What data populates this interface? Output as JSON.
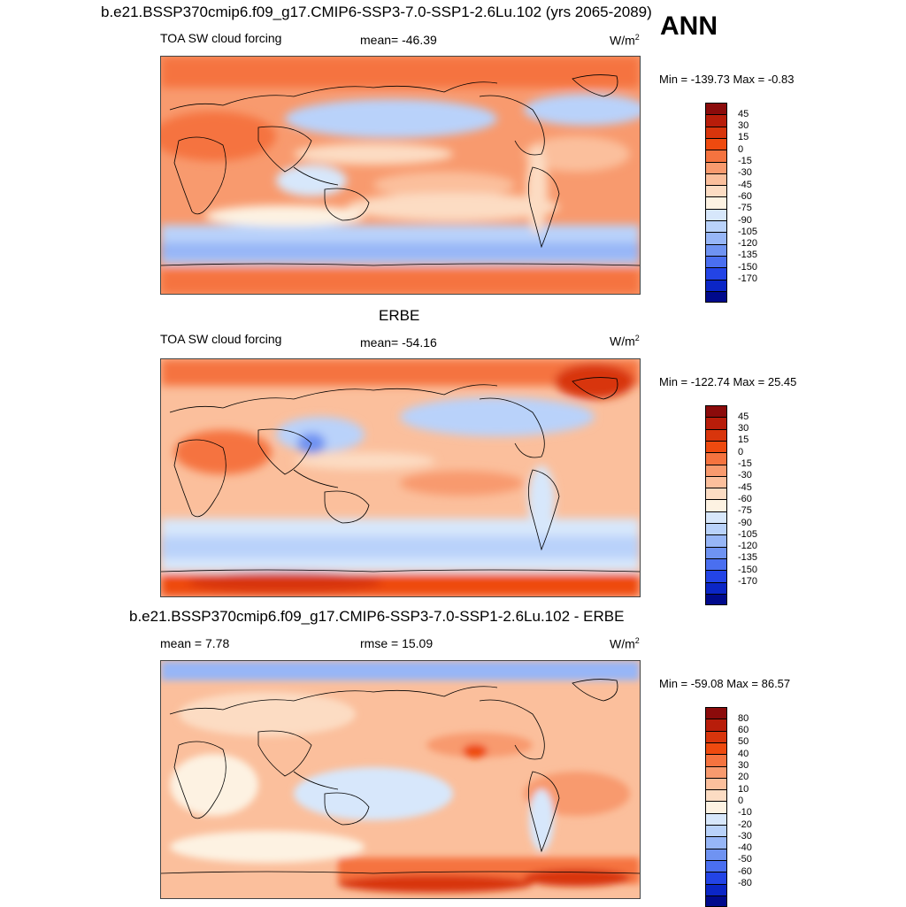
{
  "header": {
    "title": "b.e21.BSSP370cmip6.f09_g17.CMIP6-SSP3-7.0-SSP1-2.6Lu.102 (yrs 2065-2089)",
    "season": "ANN"
  },
  "panels": [
    {
      "id": "model",
      "subtitle": "",
      "left_label": "TOA SW cloud forcing",
      "center_label": "mean= -46.39",
      "unit": "W/m",
      "unit_exp": "2",
      "minmax": "Min = -139.73 Max =  -0.83",
      "colorbar_labels": [
        "45",
        "30",
        "15",
        "0",
        "-15",
        "-30",
        "-45",
        "-60",
        "-75",
        "-90",
        "-105",
        "-120",
        "-135",
        "-150",
        "-170"
      ],
      "colorbar_colors": [
        "#8b0b0b",
        "#b81d0a",
        "#d8350c",
        "#ee4a0f",
        "#f5733f",
        "#f89a6e",
        "#fbbf9c",
        "#fcdcc3",
        "#fdf2e2",
        "#d7e7fb",
        "#b9d2fa",
        "#97b6f7",
        "#6f93f2",
        "#4a6ff0",
        "#2344e6",
        "#0b26c6",
        "#000a8c"
      ]
    },
    {
      "id": "obs",
      "subtitle": "ERBE",
      "left_label": "TOA SW cloud forcing",
      "center_label": "mean= -54.16",
      "unit": "W/m",
      "unit_exp": "2",
      "minmax": "Min = -122.74 Max =  25.45",
      "colorbar_labels": [
        "45",
        "30",
        "15",
        "0",
        "-15",
        "-30",
        "-45",
        "-60",
        "-75",
        "-90",
        "-105",
        "-120",
        "-135",
        "-150",
        "-170"
      ],
      "colorbar_colors": [
        "#8b0b0b",
        "#b81d0a",
        "#d8350c",
        "#ee4a0f",
        "#f5733f",
        "#f89a6e",
        "#fbbf9c",
        "#fcdcc3",
        "#fdf2e2",
        "#d7e7fb",
        "#b9d2fa",
        "#97b6f7",
        "#6f93f2",
        "#4a6ff0",
        "#2344e6",
        "#0b26c6",
        "#000a8c"
      ]
    },
    {
      "id": "diff",
      "subtitle": "b.e21.BSSP370cmip6.f09_g17.CMIP6-SSP3-7.0-SSP1-2.6Lu.102 - ERBE",
      "left_label": "mean =   7.78",
      "center_label": "rmse =  15.09",
      "unit": "W/m",
      "unit_exp": "2",
      "minmax": "Min = -59.08 Max =  86.57",
      "colorbar_labels": [
        "80",
        "60",
        "50",
        "40",
        "30",
        "20",
        "10",
        "0",
        "-10",
        "-20",
        "-30",
        "-40",
        "-50",
        "-60",
        "-80"
      ],
      "colorbar_colors": [
        "#8b0b0b",
        "#b81d0a",
        "#d8350c",
        "#ee4a0f",
        "#f5733f",
        "#f89a6e",
        "#fbbf9c",
        "#fcdcc3",
        "#fdf2e2",
        "#d7e7fb",
        "#b9d2fa",
        "#97b6f7",
        "#6f93f2",
        "#4a6ff0",
        "#2344e6",
        "#0b26c6",
        "#000a8c"
      ]
    }
  ]
}
